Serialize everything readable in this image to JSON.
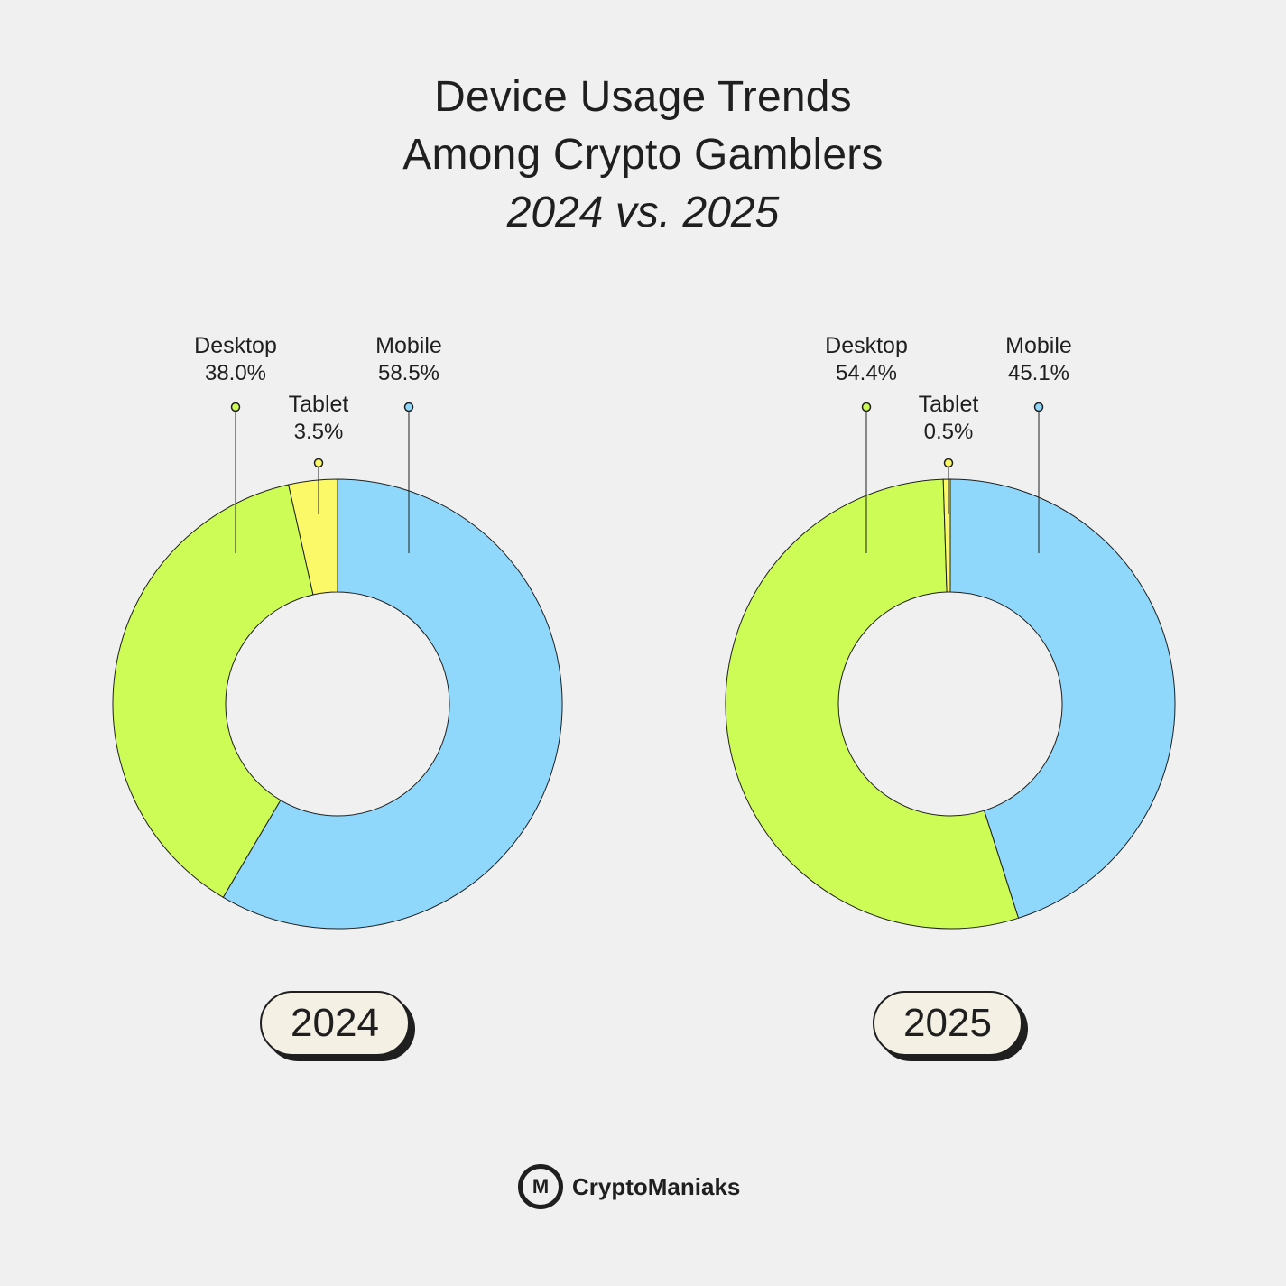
{
  "title": {
    "line1": "Device Usage Trends",
    "line2": "Among Crypto Gamblers",
    "subtitle": "2024 vs. 2025"
  },
  "colors": {
    "Mobile": "#8fd8fb",
    "Desktop": "#ccfc55",
    "Tablet": "#fbf968",
    "stroke": "#1f1f1f",
    "pill_bg": "#f5f0e4"
  },
  "chart_data": [
    {
      "type": "pie",
      "donut": true,
      "label": "2024",
      "slices": [
        {
          "name": "Mobile",
          "value": 58.5,
          "display": "58.5%"
        },
        {
          "name": "Desktop",
          "value": 38.0,
          "display": "38.0%"
        },
        {
          "name": "Tablet",
          "value": 3.5,
          "display": "3.5%"
        }
      ]
    },
    {
      "type": "pie",
      "donut": true,
      "label": "2025",
      "slices": [
        {
          "name": "Mobile",
          "value": 45.1,
          "display": "45.1%"
        },
        {
          "name": "Desktop",
          "value": 54.4,
          "display": "54.4%"
        },
        {
          "name": "Tablet",
          "value": 0.5,
          "display": "0.5%"
        }
      ]
    }
  ],
  "brand": {
    "logo_text": "M",
    "name": "CryptoManiaks",
    "logo_icon": "cryptomaniaks-logo-icon"
  }
}
